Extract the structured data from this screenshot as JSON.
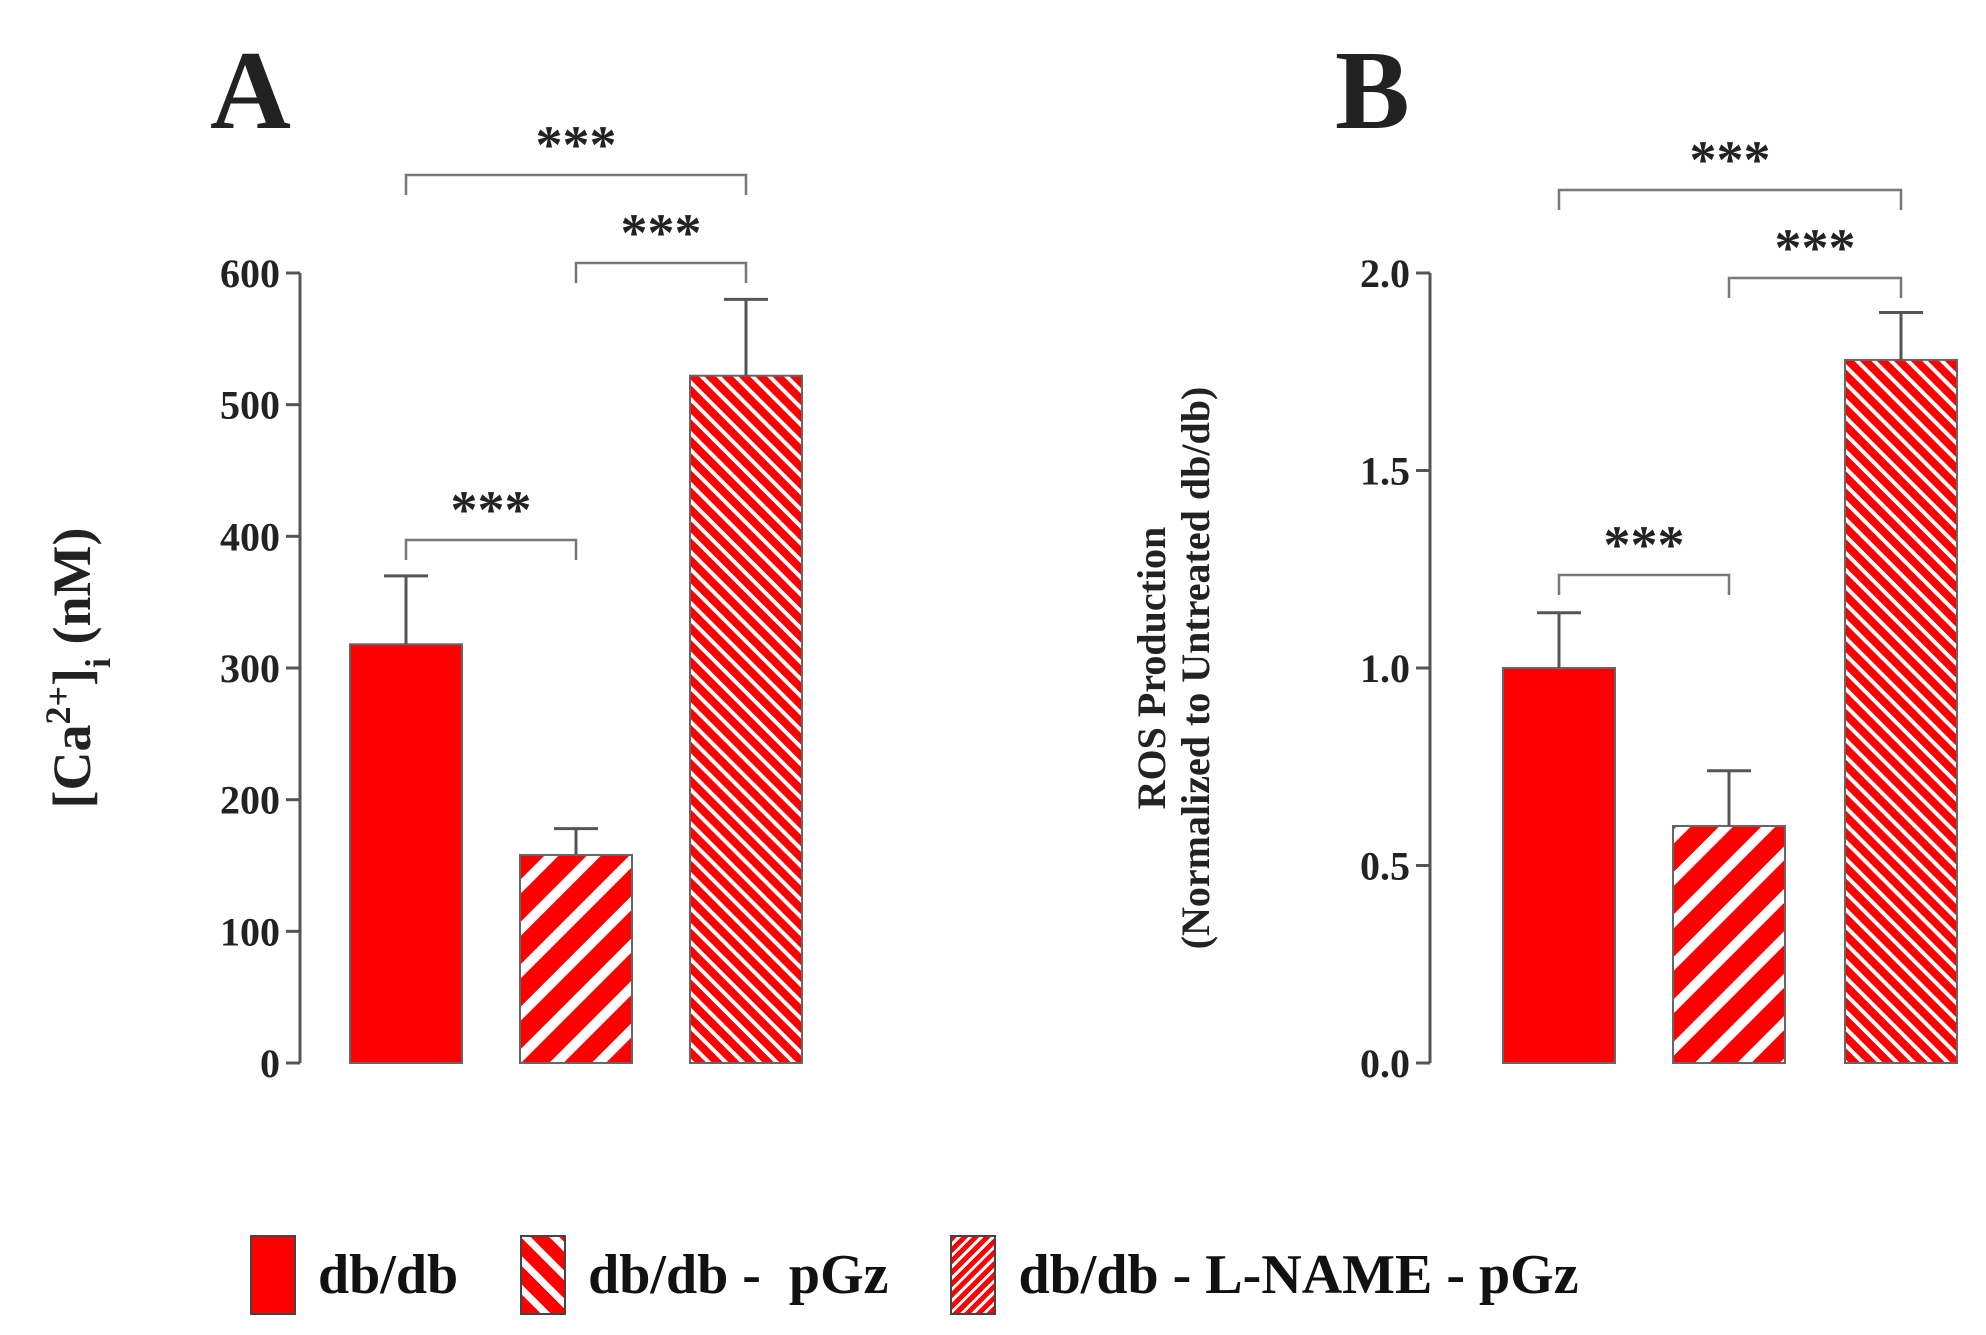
{
  "chart_data": [
    {
      "panel": "A",
      "type": "bar",
      "categories": [
        "db/db",
        "db/db -  pGz",
        "db/db - L-NAME - pGz"
      ],
      "values": [
        318,
        158,
        522
      ],
      "errors": [
        52,
        20,
        58
      ],
      "ylabel": {
        "pre": "[Ca",
        "sup": "2+",
        "mid": "]",
        "sub": "i",
        "post": " (nM)"
      },
      "ylim": [
        0,
        600
      ],
      "yticks": [
        "0",
        "100",
        "200",
        "300",
        "400",
        "500",
        "600"
      ],
      "significance": [
        {
          "from": 0,
          "to": 1,
          "label": "***"
        },
        {
          "from": 1,
          "to": 2,
          "label": "***"
        },
        {
          "from": 0,
          "to": 2,
          "label": "***"
        }
      ]
    },
    {
      "panel": "B",
      "type": "bar",
      "categories": [
        "db/db",
        "db/db -  pGz",
        "db/db - L-NAME - pGz"
      ],
      "values": [
        1.0,
        0.6,
        1.78
      ],
      "errors": [
        0.14,
        0.14,
        0.12
      ],
      "ylabel": [
        "ROS Production",
        "(Normalized to Untreated db/db)"
      ],
      "ylim": [
        0,
        2.0
      ],
      "yticks": [
        "0.0",
        "0.5",
        "1.0",
        "1.5",
        "2.0"
      ],
      "significance": [
        {
          "from": 0,
          "to": 1,
          "label": "***"
        },
        {
          "from": 1,
          "to": 2,
          "label": "***"
        },
        {
          "from": 0,
          "to": 2,
          "label": "***"
        }
      ]
    }
  ],
  "legend": {
    "placement": "bottom",
    "items": [
      {
        "label": "db/db",
        "pattern": "solid"
      },
      {
        "label": "db/db -  pGz",
        "pattern": "wide-stripes"
      },
      {
        "label": "db/db - L-NAME - pGz",
        "pattern": "fine-stripes"
      }
    ]
  },
  "colors": {
    "bar": "#ff0000",
    "stripe": "#ffffff",
    "axis": "#555555",
    "text": "#222222"
  }
}
